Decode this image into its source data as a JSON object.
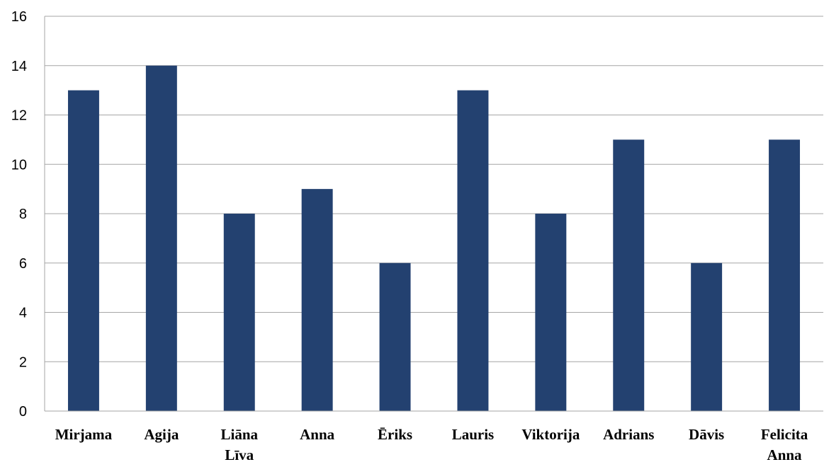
{
  "chart_data": {
    "type": "bar",
    "categories": [
      "Mirjama",
      "Agija",
      "Liāna Līva",
      "Anna",
      "Ēriks",
      "Lauris",
      "Viktorija",
      "Adrians",
      "Dāvis",
      "Felicita Anna"
    ],
    "category_lines": [
      [
        "Mirjama"
      ],
      [
        "Agija"
      ],
      [
        "Liāna",
        "Līva"
      ],
      [
        "Anna"
      ],
      [
        "Ēriks"
      ],
      [
        "Lauris"
      ],
      [
        "Viktorija"
      ],
      [
        "Adrians"
      ],
      [
        "Dāvis"
      ],
      [
        "Felicita",
        "Anna"
      ]
    ],
    "values": [
      13,
      14,
      8,
      9,
      6,
      13,
      8,
      11,
      6,
      11
    ],
    "ylim": [
      0,
      16
    ],
    "yticks": [
      0,
      2,
      4,
      6,
      8,
      10,
      12,
      14,
      16
    ],
    "title": "",
    "xlabel": "",
    "ylabel": "",
    "grid": true,
    "legend": "none",
    "bar_color": "#234170",
    "grid_color": "#a6a6a6"
  }
}
